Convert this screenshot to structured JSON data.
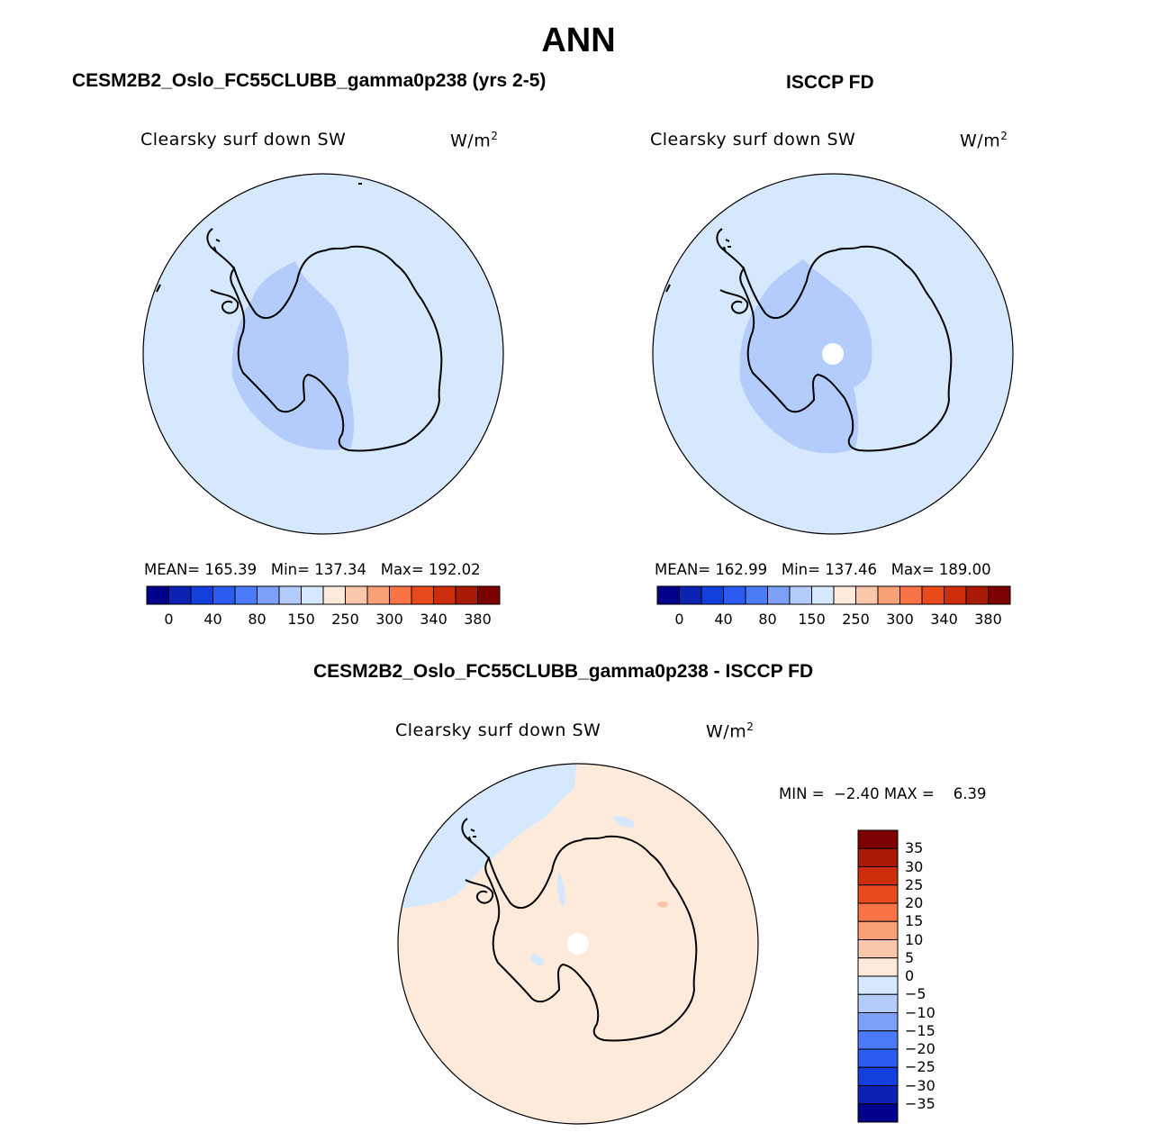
{
  "title": "ANN",
  "colors": {
    "coastline": "#000000",
    "ocean_fill": "#d6e8fd",
    "low_fill": "#b3ccfb",
    "diff_bg": "#feeadb",
    "diff_neg": "#d6e8fd",
    "diff_pos": "#fbc7ab"
  },
  "panels": [
    {
      "heading": "CESM2B2_Oslo_FC55CLUBB_gamma0p238 (yrs 2-5)",
      "variable": "Clearsky surf down SW",
      "units_base": "W/m",
      "units_sup": "2",
      "stats": {
        "mean_label": "MEAN=",
        "mean": "165.39",
        "min_label": "Min=",
        "min": "137.34",
        "max_label": "Max=",
        "max": "192.02"
      },
      "missing_pole": false
    },
    {
      "heading": "ISCCP FD",
      "variable": "Clearsky surf down SW",
      "units_base": "W/m",
      "units_sup": "2",
      "stats": {
        "mean_label": "MEAN=",
        "mean": "162.99",
        "min_label": "Min=",
        "min": "137.46",
        "max_label": "Max=",
        "max": "189.00"
      },
      "missing_pole": true
    }
  ],
  "colorbar_top": {
    "colors": [
      "#00008a",
      "#0b22b2",
      "#1340dc",
      "#2a5cf0",
      "#4a7af6",
      "#7c9ff8",
      "#b3ccfb",
      "#d6e8fd",
      "#feeadb",
      "#fbc7ab",
      "#f9a077",
      "#f87346",
      "#e84a1c",
      "#cc2e0c",
      "#a81a06",
      "#7d0000"
    ],
    "labels": [
      "0",
      "40",
      "80",
      "150",
      "250",
      "300",
      "340",
      "380"
    ]
  },
  "diff": {
    "heading": "CESM2B2_Oslo_FC55CLUBB_gamma0p238 - ISCCP FD",
    "variable": "Clearsky surf down SW",
    "units_base": "W/m",
    "units_sup": "2",
    "minmax": {
      "min_label": "MIN =",
      "min": "−2.40",
      "max_label": "MAX =",
      "max": "6.39"
    },
    "colorbar": {
      "colors_top_to_bottom": [
        "#7d0000",
        "#a81a06",
        "#cc2e0c",
        "#e84a1c",
        "#f87346",
        "#f9a077",
        "#fbc7ab",
        "#feeadb",
        "#d6e8fd",
        "#b3ccfb",
        "#7c9ff8",
        "#4a7af6",
        "#2a5cf0",
        "#1340dc",
        "#0b22b2",
        "#00008a"
      ],
      "labels_top_to_bottom": [
        "35",
        "30",
        "25",
        "20",
        "15",
        "10",
        "5",
        "0",
        "−5",
        "−10",
        "−15",
        "−20",
        "−25",
        "−30",
        "−35"
      ]
    }
  }
}
